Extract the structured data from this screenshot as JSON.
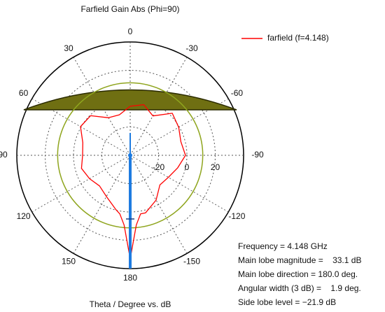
{
  "chart_data": {
    "type": "polar",
    "title": "Farfield Gain Abs (Phi=90)",
    "x_label": "Theta / Degree vs. dB",
    "series": [
      {
        "name": "farfield (f=4.148)",
        "color": "#ff0000",
        "theta": [
          -175,
          -170,
          -165,
          -150,
          -135,
          -120,
          -105,
          -90,
          -75,
          -60,
          -45,
          -30,
          -15,
          0,
          15,
          30,
          45,
          60,
          75,
          90,
          105,
          120,
          135,
          150,
          165,
          170,
          175,
          180
        ],
        "values": [
          9.4,
          2.0,
          2.0,
          -3.5,
          -10.4,
          -8.9,
          -5.4,
          -1.0,
          -3.0,
          -0.5,
          2.0,
          -7.9,
          -3.0,
          -5.4,
          -10.4,
          -9.4,
          -0.5,
          0.5,
          -5.4,
          -6.4,
          -4.4,
          -6.9,
          -9.4,
          -6.4,
          -0.5,
          2.0,
          9.4,
          33.1
        ]
      }
    ],
    "rlim": [
      -40,
      40
    ],
    "rticks": [
      -20,
      0,
      20
    ],
    "theta_ticks": [
      0,
      30,
      60,
      90,
      120,
      150,
      180,
      -150,
      -120,
      -90,
      -60,
      -30
    ],
    "sidelobe_circle": {
      "value": 11.2,
      "color": "#8fa51e"
    },
    "info": [
      "Frequency = 4.148 GHz",
      "Main lobe magnitude =    33.1 dB",
      "Main lobe direction = 180.0 deg.",
      "Angular width (3 dB) =    1.9 deg.",
      "Side lobe level = −21.9 dB"
    ]
  }
}
